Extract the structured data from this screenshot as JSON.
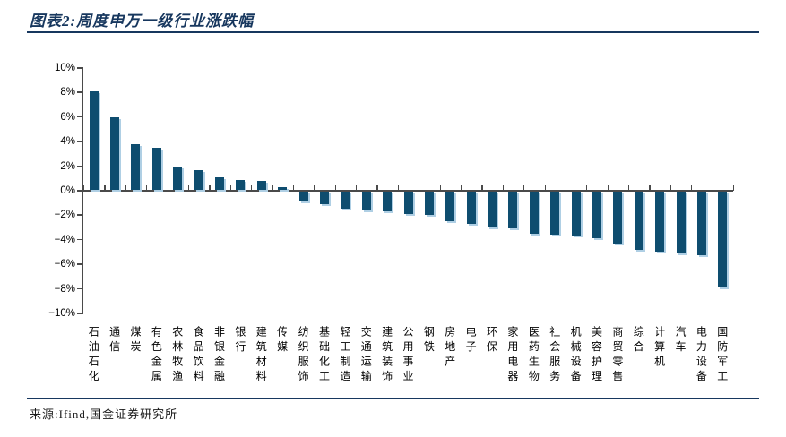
{
  "header": {
    "figure_label": "图表2:",
    "title": "周度申万一级行业涨跌幅"
  },
  "footer": {
    "source": "来源:Ifind,国金证券研究所"
  },
  "theme": {
    "accent": "#17375E",
    "axis_color": "#4a4a4a",
    "bar_color": "#0E4D6F",
    "bar_shadow_color": "#AFCFE4"
  },
  "chart_data": {
    "type": "bar",
    "title": "周度申万一级行业涨跌幅",
    "xlabel": "",
    "ylabel": "",
    "unit": "%",
    "ylim": [
      -10,
      10
    ],
    "grid": false,
    "legend": "none",
    "sort": "descending",
    "categories": [
      "石油石化",
      "通信",
      "煤炭",
      "有色金属",
      "农林牧渔",
      "食品饮料",
      "非银金融",
      "银行",
      "建筑材料",
      "传媒",
      "纺织服饰",
      "基础化工",
      "轻工制造",
      "交通运输",
      "建筑装饰",
      "公用事业",
      "钢铁",
      "房地产",
      "电子",
      "环保",
      "家用电器",
      "医药生物",
      "社会服务",
      "机械设备",
      "美容护理",
      "商贸零售",
      "综合",
      "计算机",
      "汽车",
      "电力设备",
      "国防军工"
    ],
    "values": [
      8.0,
      5.9,
      3.7,
      3.4,
      1.9,
      1.6,
      1.0,
      0.8,
      0.7,
      0.25,
      -0.8,
      -1.0,
      -1.4,
      -1.5,
      -1.6,
      -1.8,
      -1.9,
      -2.4,
      -2.6,
      -2.9,
      -3.0,
      -3.4,
      -3.5,
      -3.6,
      -3.8,
      -4.2,
      -4.75,
      -4.9,
      -5.05,
      -5.2,
      -7.8
    ],
    "yticks": {
      "values": [
        10,
        8,
        6,
        4,
        2,
        0,
        -2,
        -4,
        -6,
        -8,
        -10
      ],
      "labels": [
        "10%",
        "8%",
        "6%",
        "4%",
        "2%",
        "0%",
        "−2%",
        "−4%",
        "−6%",
        "−8%",
        "−10%"
      ]
    }
  }
}
